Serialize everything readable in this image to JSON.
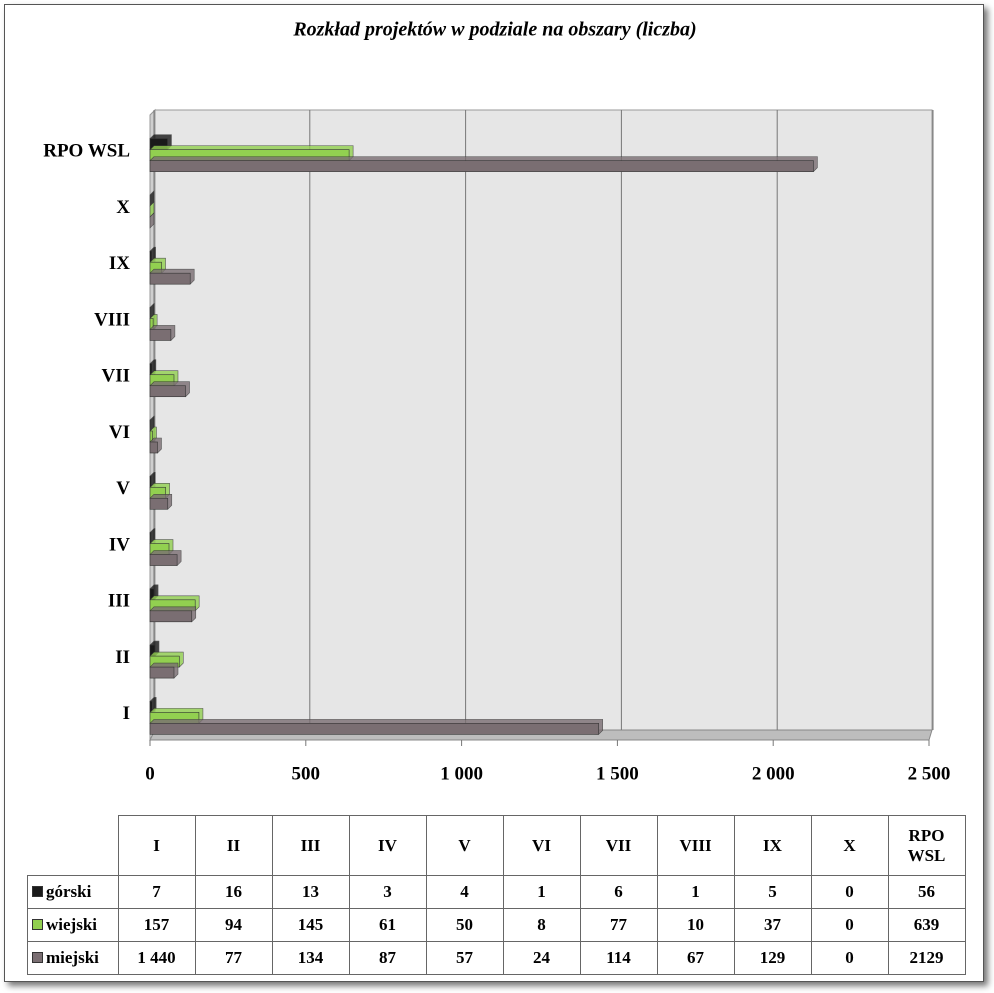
{
  "chart_data": {
    "type": "bar",
    "orientation": "horizontal",
    "title": "Rozkład projektów w podziale na obszary (liczba)",
    "categories": [
      "I",
      "II",
      "III",
      "IV",
      "V",
      "VI",
      "VII",
      "VIII",
      "IX",
      "X",
      "RPO WSL"
    ],
    "series": [
      {
        "name": "górski",
        "color": "#1a1a1a",
        "values": [
          7,
          16,
          13,
          3,
          4,
          1,
          6,
          1,
          5,
          0,
          56
        ]
      },
      {
        "name": "wiejski",
        "color": "#92d050",
        "values": [
          157,
          94,
          145,
          61,
          50,
          8,
          77,
          10,
          37,
          0,
          639
        ]
      },
      {
        "name": "miejski",
        "color": "#7a6e72",
        "values": [
          1440,
          77,
          134,
          87,
          57,
          24,
          114,
          67,
          129,
          0,
          2129
        ],
        "value_labels": [
          "1 440",
          "77",
          "134",
          "87",
          "57",
          "24",
          "114",
          "67",
          "129",
          "0",
          "2129"
        ]
      }
    ],
    "xlim": [
      0,
      2500
    ],
    "xticks": [
      0,
      500,
      {
        "value": 1000,
        "label": "1 000"
      },
      {
        "value": 1500,
        "label": "1 500"
      },
      {
        "value": 2000,
        "label": "2 000"
      },
      {
        "value": 2500,
        "label": "2 500"
      }
    ],
    "grid": true
  }
}
